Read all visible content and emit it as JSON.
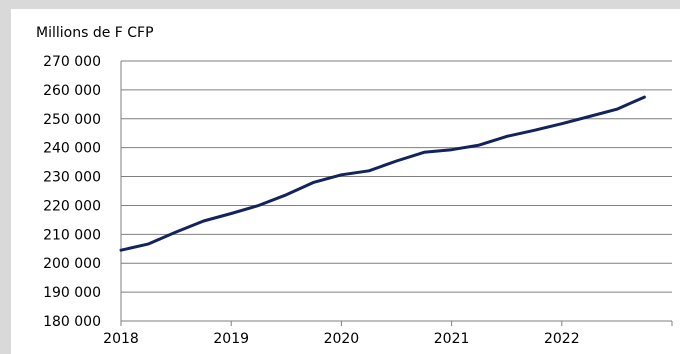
{
  "chart_data": {
    "type": "line",
    "title": "",
    "unit_label": "Millions de F CFP",
    "xlabel": "",
    "ylabel": "",
    "x_ticks": [
      "2018",
      "2019",
      "2020",
      "2021",
      "2022"
    ],
    "y_ticks": [
      "180 000",
      "190 000",
      "200 000",
      "210 000",
      "220 000",
      "230 000",
      "240 000",
      "250 000",
      "260 000",
      "270 000"
    ],
    "ylim": [
      180000,
      270000
    ],
    "xlim": [
      2018,
      2023
    ],
    "grid": true,
    "legend": "none",
    "line_color": "#13235b",
    "series": [
      {
        "x": [
          2018.0,
          2018.25,
          2018.5,
          2018.75,
          2019.0,
          2019.25,
          2019.5,
          2019.75,
          2020.0,
          2020.25,
          2020.5,
          2020.75,
          2021.0,
          2021.25,
          2021.5,
          2021.75,
          2022.0,
          2022.25,
          2022.5,
          2022.75
        ],
        "values": [
          204500,
          206700,
          210800,
          214600,
          217200,
          220000,
          223700,
          228000,
          230600,
          232000,
          235400,
          238400,
          239300,
          240900,
          243900,
          246000,
          248300,
          250800,
          253300,
          257500
        ]
      }
    ]
  }
}
